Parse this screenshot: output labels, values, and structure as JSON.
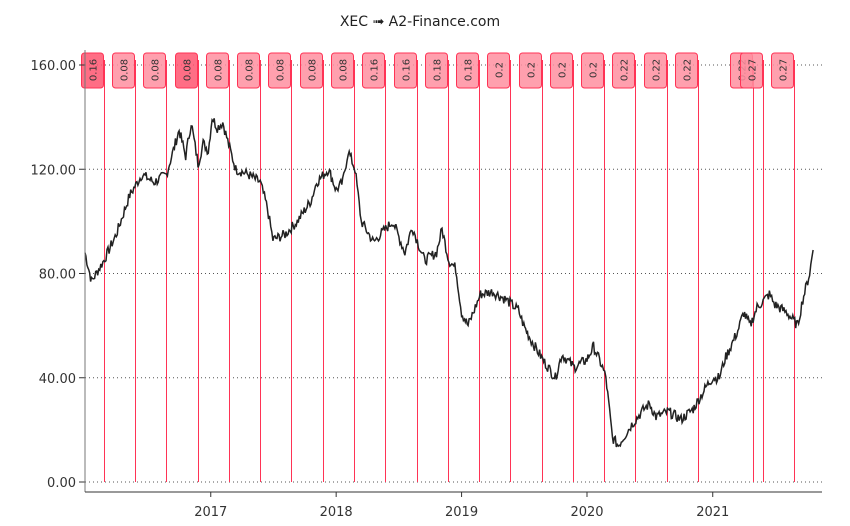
{
  "chart_data": {
    "type": "line",
    "title": "XEC ➟ A2-Finance.com",
    "xlabel": "",
    "ylabel": "",
    "ylim": [
      0,
      160
    ],
    "xlim": [
      "2016-01-01",
      "2021-11-15"
    ],
    "grid": "horizontal dotted",
    "y_ticks": [
      "0.00",
      "40.00",
      "80.00",
      "120.00",
      "160.00"
    ],
    "x_ticks": [
      "2017",
      "2018",
      "2019",
      "2020",
      "2021"
    ],
    "series": [
      {
        "color": "#222222",
        "points": [
          [
            "2016-01-01",
            88
          ],
          [
            "2016-01-20",
            77
          ],
          [
            "2016-02-25",
            85
          ],
          [
            "2016-04-01",
            95
          ],
          [
            "2016-05-10",
            110
          ],
          [
            "2016-06-15",
            118
          ],
          [
            "2016-07-20",
            115
          ],
          [
            "2016-08-25",
            118
          ],
          [
            "2016-09-20",
            130
          ],
          [
            "2016-10-01",
            135
          ],
          [
            "2016-10-20",
            125
          ],
          [
            "2016-11-05",
            138
          ],
          [
            "2016-11-25",
            122
          ],
          [
            "2016-12-10",
            130
          ],
          [
            "2016-12-25",
            127
          ],
          [
            "2017-01-05",
            140
          ],
          [
            "2017-01-20",
            136
          ],
          [
            "2017-02-05",
            138
          ],
          [
            "2017-02-25",
            128
          ],
          [
            "2017-03-15",
            120
          ],
          [
            "2017-04-20",
            118
          ],
          [
            "2017-05-25",
            115
          ],
          [
            "2017-06-15",
            105
          ],
          [
            "2017-07-01",
            93
          ],
          [
            "2017-08-05",
            95
          ],
          [
            "2017-09-10",
            100
          ],
          [
            "2017-10-20",
            108
          ],
          [
            "2017-11-05",
            115
          ],
          [
            "2017-12-10",
            120
          ],
          [
            "2018-01-01",
            112
          ],
          [
            "2018-01-20",
            115
          ],
          [
            "2018-02-05",
            127
          ],
          [
            "2018-02-25",
            120
          ],
          [
            "2018-03-15",
            100
          ],
          [
            "2018-04-20",
            92
          ],
          [
            "2018-05-10",
            95
          ],
          [
            "2018-06-15",
            100
          ],
          [
            "2018-07-20",
            88
          ],
          [
            "2018-08-10",
            98
          ],
          [
            "2018-09-15",
            85
          ],
          [
            "2018-10-20",
            88
          ],
          [
            "2018-11-05",
            97
          ],
          [
            "2018-11-25",
            85
          ],
          [
            "2018-12-15",
            82
          ],
          [
            "2019-01-01",
            65
          ],
          [
            "2019-01-20",
            60
          ],
          [
            "2019-02-25",
            72
          ],
          [
            "2019-04-01",
            73
          ],
          [
            "2019-05-10",
            70
          ],
          [
            "2019-06-15",
            66
          ],
          [
            "2019-07-01",
            60
          ],
          [
            "2019-07-20",
            55
          ],
          [
            "2019-08-25",
            47
          ],
          [
            "2019-10-01",
            40
          ],
          [
            "2019-10-20",
            49
          ],
          [
            "2019-11-25",
            44
          ],
          [
            "2020-01-01",
            47
          ],
          [
            "2020-01-20",
            52
          ],
          [
            "2020-02-15",
            44
          ],
          [
            "2020-02-25",
            40
          ],
          [
            "2020-03-15",
            17
          ],
          [
            "2020-04-01",
            14
          ],
          [
            "2020-05-10",
            22
          ],
          [
            "2020-06-15",
            28
          ],
          [
            "2020-07-01",
            30
          ],
          [
            "2020-07-20",
            25
          ],
          [
            "2020-08-25",
            27
          ],
          [
            "2020-10-01",
            24
          ],
          [
            "2020-11-05",
            28
          ],
          [
            "2020-12-15",
            37
          ],
          [
            "2021-01-01",
            40
          ],
          [
            "2021-01-20",
            40
          ],
          [
            "2021-02-05",
            47
          ],
          [
            "2021-03-15",
            58
          ],
          [
            "2021-04-01",
            65
          ],
          [
            "2021-04-20",
            60
          ],
          [
            "2021-05-10",
            67
          ],
          [
            "2021-06-15",
            72
          ],
          [
            "2021-07-01",
            68
          ],
          [
            "2021-08-05",
            65
          ],
          [
            "2021-09-05",
            60
          ],
          [
            "2021-09-20",
            70
          ],
          [
            "2021-10-10",
            80
          ],
          [
            "2021-10-20",
            89
          ]
        ]
      }
    ],
    "dividends": [
      {
        "date": "2016-02-25",
        "label": "0.16",
        "color": "#ff5570"
      },
      {
        "date": "2016-05-26",
        "label": "0.08",
        "color": "#ff8fa0"
      },
      {
        "date": "2016-08-25",
        "label": "0.08",
        "color": "#ff8fa0"
      },
      {
        "date": "2016-11-24",
        "label": "0.08",
        "color": "#ff5570"
      },
      {
        "date": "2017-02-23",
        "label": "0.08",
        "color": "#ff8fa0"
      },
      {
        "date": "2017-05-25",
        "label": "0.08",
        "color": "#ff8fa0"
      },
      {
        "date": "2017-08-24",
        "label": "0.08",
        "color": "#ff8fa0"
      },
      {
        "date": "2017-11-23",
        "label": "0.08",
        "color": "#ff8fa0"
      },
      {
        "date": "2018-02-22",
        "label": "0.08",
        "color": "#ff8fa0"
      },
      {
        "date": "2018-05-24",
        "label": "0.16",
        "color": "#ff8fa0"
      },
      {
        "date": "2018-08-23",
        "label": "0.16",
        "color": "#ff8fa0"
      },
      {
        "date": "2018-11-22",
        "label": "0.18",
        "color": "#ff8fa0"
      },
      {
        "date": "2019-02-21",
        "label": "0.18",
        "color": "#ff8fa0"
      },
      {
        "date": "2019-05-23",
        "label": "0.2",
        "color": "#ff8fa0"
      },
      {
        "date": "2019-08-22",
        "label": "0.2",
        "color": "#ff8fa0"
      },
      {
        "date": "2019-11-21",
        "label": "0.2",
        "color": "#ff8fa0"
      },
      {
        "date": "2020-02-20",
        "label": "0.2",
        "color": "#ff8fa0"
      },
      {
        "date": "2020-05-21",
        "label": "0.22",
        "color": "#ff8fa0"
      },
      {
        "date": "2020-08-20",
        "label": "0.22",
        "color": "#ff8fa0"
      },
      {
        "date": "2020-11-19",
        "label": "0.22",
        "color": "#ff8fa0"
      },
      {
        "date": "2021-04-27",
        "label": "0.22",
        "color": "#ff8fa0"
      },
      {
        "date": "2021-05-27",
        "label": "0.27",
        "color": "#ff8fa0"
      },
      {
        "date": "2021-08-26",
        "label": "0.27",
        "color": "#ff8fa0"
      }
    ],
    "dividend_line_color": "#ff3355"
  }
}
